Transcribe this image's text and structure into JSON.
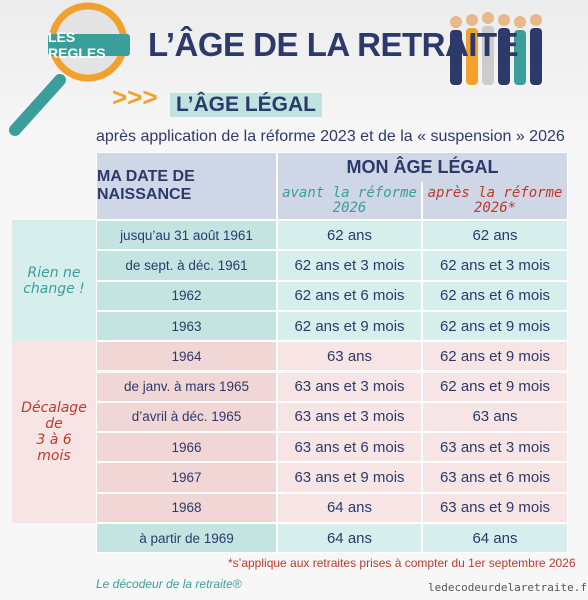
{
  "header": {
    "badge": "LES REGLES",
    "title": "L’ÂGE DE LA RETRAITE"
  },
  "section": {
    "title": "L’ÂGE LÉGAL",
    "subtitle": "après application de la réforme 2023 et de la « suspension » 2026"
  },
  "table": {
    "col_header": "MA DATE DE NAISSANCE",
    "group_header": "MON ÂGE LÉGAL",
    "sub_headers": [
      [
        "avant la réforme",
        "2026"
      ],
      [
        "après la réforme",
        "2026*"
      ]
    ],
    "groups": [
      [
        "Rien ne",
        "change !"
      ],
      [
        "Décalage",
        "de",
        "3 à 6",
        "mois"
      ]
    ],
    "rows": [
      [
        "jusqu’au 31 août 1961",
        "62 ans",
        "62 ans"
      ],
      [
        "de sept. à déc. 1961",
        "62 ans et 3 mois",
        "62 ans et 3 mois"
      ],
      [
        "1962",
        "62 ans et 6 mois",
        "62 ans et 6 mois"
      ],
      [
        "1963",
        "62 ans et 9 mois",
        "62 ans et 9 mois"
      ],
      [
        "1964",
        "63 ans",
        "62 ans et 9 mois"
      ],
      [
        "de janv. à mars 1965",
        "63 ans et 3 mois",
        "62 ans et 9 mois"
      ],
      [
        "d’avril à déc. 1965",
        "63 ans et 3 mois",
        "63 ans"
      ],
      [
        "1966",
        "63 ans et 6 mois",
        "63 ans et 3 mois"
      ],
      [
        "1967",
        "63 ans et 9 mois",
        "63 ans et 6 mois"
      ],
      [
        "1968",
        "64 ans",
        "63 ans et 9 mois"
      ],
      [
        "à partir de 1969",
        "64 ans",
        "64 ans"
      ]
    ]
  },
  "footnote": "*s’applique aux retraites prises à compter du 1er septembre 2026",
  "brand": "Le décodeur de la retraite®",
  "url": "ledecodeurdelaretraite.fr"
}
